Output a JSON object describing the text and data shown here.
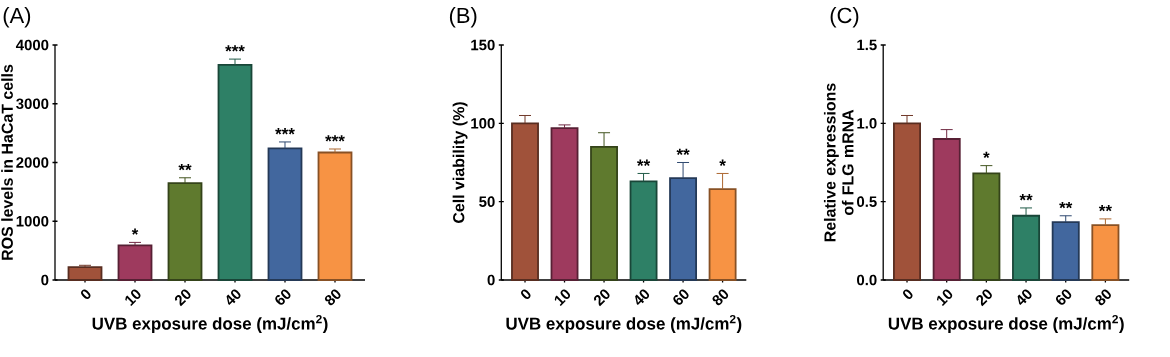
{
  "chart_data": [
    {
      "type": "bar",
      "title": "(A)",
      "xlabel": "UVB exposure dose (mJ/cm$^{2}$)",
      "ylabel": "ROS levels in HaCaT cells",
      "categories": [
        "0",
        "10",
        "20",
        "40",
        "60",
        "80"
      ],
      "values": [
        220,
        590,
        1650,
        3660,
        2240,
        2170
      ],
      "errors": [
        30,
        50,
        90,
        100,
        110,
        60
      ],
      "colors": [
        "#a0523a",
        "#9e3a5e",
        "#5f7a2e",
        "#2e8066",
        "#42679e",
        "#f79344"
      ],
      "ylim": [
        0,
        4000
      ],
      "yticks": [
        0,
        1000,
        2000,
        3000,
        4000
      ],
      "annotations": [
        {
          "text": "*",
          "x": "10",
          "y": 640
        },
        {
          "text": "**",
          "x": "20",
          "y": 1740
        },
        {
          "text": "***",
          "x": "40",
          "y": 3760
        },
        {
          "text": "***",
          "x": "60",
          "y": 2350
        },
        {
          "text": "***",
          "x": "80",
          "y": 2230
        }
      ]
    },
    {
      "type": "bar",
      "title": "(B)",
      "xlabel": "UVB exposure dose (mJ/cm$^{2}$)",
      "ylabel": "Cell viability (%)",
      "categories": [
        "0",
        "10",
        "20",
        "40",
        "60",
        "80"
      ],
      "values": [
        100,
        97,
        85,
        63,
        65,
        58
      ],
      "errors": [
        5,
        2,
        9,
        5,
        10,
        10
      ],
      "colors": [
        "#a0523a",
        "#9e3a5e",
        "#5f7a2e",
        "#2e8066",
        "#42679e",
        "#f79344"
      ],
      "ylim": [
        0,
        150
      ],
      "yticks": [
        0,
        50,
        100,
        150
      ],
      "annotations": [
        {
          "text": "**",
          "x": "40",
          "y": 68
        },
        {
          "text": "**",
          "x": "60",
          "y": 75
        },
        {
          "text": "*",
          "x": "80",
          "y": 68
        }
      ]
    },
    {
      "type": "bar",
      "title": "(C)",
      "xlabel": "UVB exposure dose (mJ/cm$^{2}$)",
      "ylabel": "Relative expressions of FLG mRNA",
      "categories": [
        "0",
        "10",
        "20",
        "40",
        "60",
        "80"
      ],
      "values": [
        1.0,
        0.9,
        0.68,
        0.41,
        0.37,
        0.35
      ],
      "errors": [
        0.05,
        0.06,
        0.05,
        0.05,
        0.04,
        0.04
      ],
      "colors": [
        "#a0523a",
        "#9e3a5e",
        "#5f7a2e",
        "#2e8066",
        "#42679e",
        "#f79344"
      ],
      "ylim": [
        0,
        1.5
      ],
      "yticks": [
        {
          "value": 0,
          "label": "0.0"
        },
        {
          "value": 0.5,
          "label": "0.5"
        },
        {
          "value": 1.0,
          "label": "1.0"
        },
        {
          "value": 1.5,
          "label": "1.5"
        }
      ],
      "annotations": [
        {
          "text": "*",
          "x": "20",
          "y": 0.73
        },
        {
          "text": "**",
          "x": "40",
          "y": 0.46
        },
        {
          "text": "**",
          "x": "60",
          "y": 0.41
        },
        {
          "text": "**",
          "x": "80",
          "y": 0.39
        }
      ]
    }
  ]
}
